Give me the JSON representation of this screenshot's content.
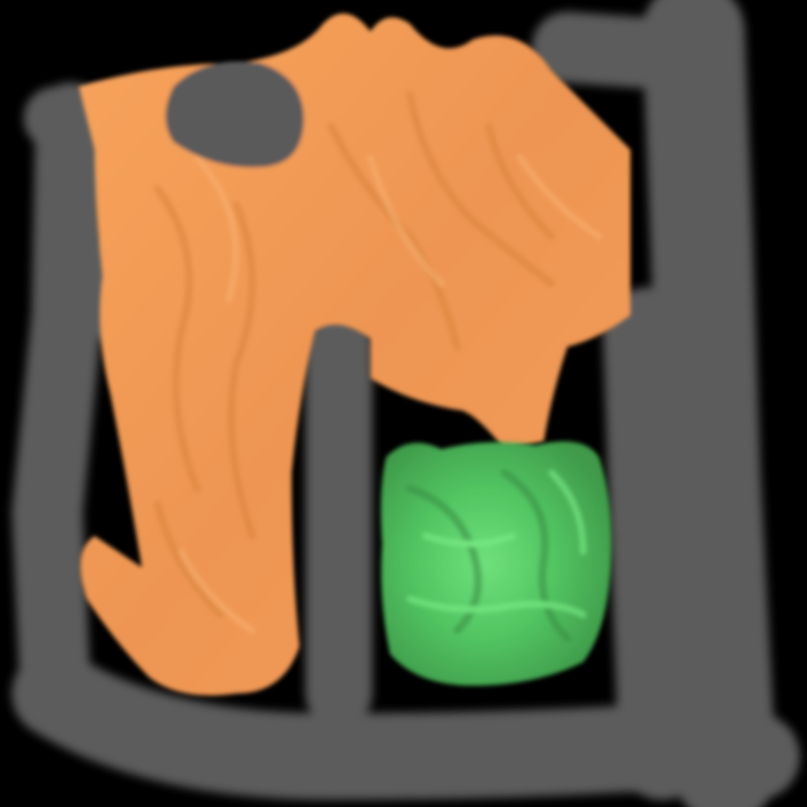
{
  "scene": {
    "background_color": "#000000",
    "regions": [
      {
        "name": "gray-region",
        "color": "#5c5c5c"
      },
      {
        "name": "orange-region",
        "color": "#f59a56"
      },
      {
        "name": "green-region",
        "color": "#4fc15e"
      }
    ]
  }
}
